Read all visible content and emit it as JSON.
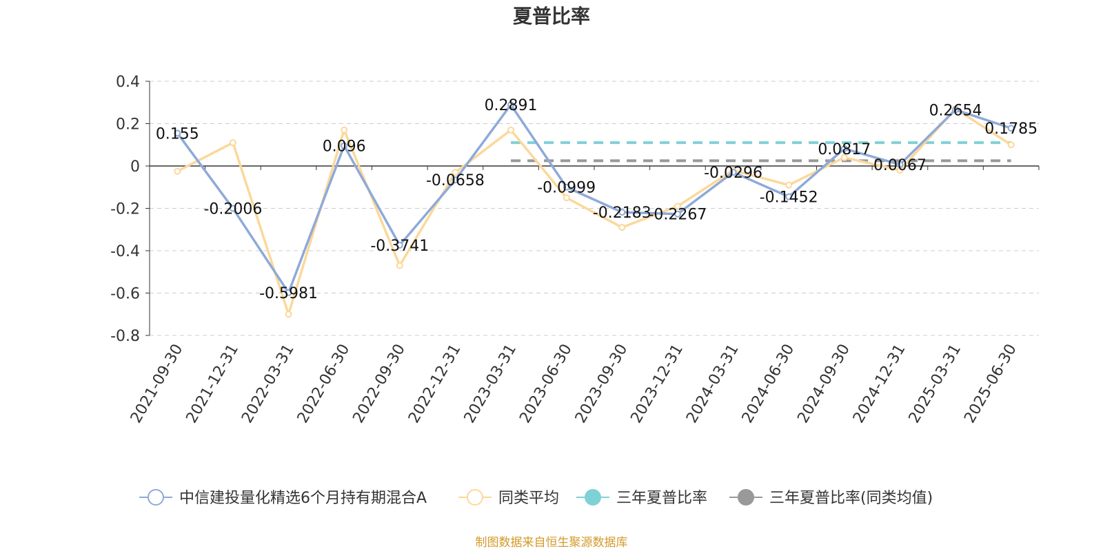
{
  "chart_data": {
    "type": "line",
    "title": "夏普比率",
    "categories": [
      "2021-09-30",
      "2021-12-31",
      "2022-03-31",
      "2022-06-30",
      "2022-09-30",
      "2022-12-31",
      "2023-03-31",
      "2023-06-30",
      "2023-09-30",
      "2023-12-31",
      "2024-03-31",
      "2024-06-30",
      "2024-09-30",
      "2024-12-31",
      "2025-03-31",
      "2025-06-30"
    ],
    "ylim": [
      -0.8,
      0.4
    ],
    "yticks": [
      0.4,
      0.2,
      0,
      -0.2,
      -0.4,
      -0.6,
      -0.8
    ],
    "ytick_labels": [
      "0.4",
      "0.2",
      "0",
      "-0.2",
      "-0.4",
      "-0.6",
      "-0.8"
    ],
    "grid": true,
    "legend_position": "bottom",
    "series": [
      {
        "name": "中信建投量化精选6个月持有期混合A",
        "color": "#8eaad8",
        "values": [
          0.155,
          -0.2006,
          -0.5981,
          0.096,
          -0.3741,
          -0.0658,
          0.2891,
          -0.0999,
          -0.2183,
          -0.2267,
          -0.0296,
          -0.1452,
          0.0817,
          0.0067,
          0.2654,
          0.1785
        ],
        "labels": [
          "0.155",
          "-0.2006",
          "-0.5981",
          "0.096",
          "-0.3741",
          "-0.0658",
          "0.2891",
          "-0.0999",
          "-0.2183",
          "-0.2267",
          "-0.0296",
          "-0.1452",
          "0.0817",
          "0.0067",
          "0.2654",
          "0.1785"
        ]
      },
      {
        "name": "同类平均",
        "color": "#fbd89a",
        "values": [
          -0.025,
          0.11,
          -0.7,
          0.17,
          -0.47,
          -0.03,
          0.17,
          -0.15,
          -0.29,
          -0.19,
          -0.02,
          -0.09,
          0.04,
          -0.02,
          0.27,
          0.1
        ]
      }
    ],
    "reference_lines": [
      {
        "name": "三年夏普比率",
        "color": "#7fd1d6",
        "value": 0.11,
        "from": "2023-03-31",
        "to": "2025-06-30"
      },
      {
        "name": "三年夏普比率(同类均值)",
        "color": "#999999",
        "value": 0.025,
        "from": "2023-03-31",
        "to": "2025-06-30"
      }
    ]
  },
  "source_note": "制图数据来自恒生聚源数据库"
}
